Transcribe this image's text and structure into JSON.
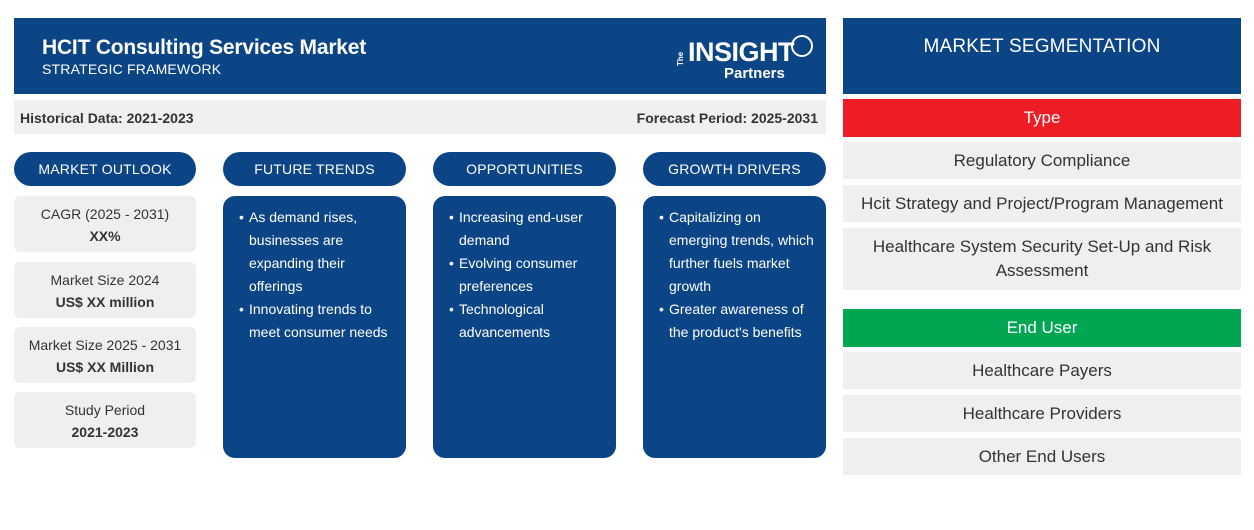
{
  "header": {
    "title": "HCIT Consulting Services Market",
    "subtitle": "STRATEGIC FRAMEWORK",
    "logo": {
      "the": "The",
      "insight": "INSIGHT",
      "partners": "Partners"
    }
  },
  "infobar": {
    "historical": "Historical Data: 2021-2023",
    "forecast": "Forecast Period: 2025-2031"
  },
  "sections": {
    "outlook": "MARKET OUTLOOK",
    "trends": "FUTURE TRENDS",
    "opportunities": "OPPORTUNITIES",
    "drivers": "GROWTH DRIVERS"
  },
  "outlook": [
    {
      "label": "CAGR (2025 - 2031)",
      "value": "XX%"
    },
    {
      "label": "Market Size 2024",
      "value": "US$ XX million"
    },
    {
      "label": "Market Size 2025 - 2031",
      "value": "US$ XX Million"
    },
    {
      "label": "Study Period",
      "value": "2021-2023"
    }
  ],
  "trends": [
    "As demand rises, businesses are expanding their offerings",
    "Innovating trends to meet consumer needs"
  ],
  "opportunities": [
    "Increasing end-user demand",
    "Evolving consumer preferences",
    "Technological advancements"
  ],
  "drivers": [
    "Capitalizing on emerging trends, which further fuels market growth",
    "Greater awareness of the product's benefits"
  ],
  "segmentation": {
    "title": "MARKET SEGMENTATION",
    "type_label": "Type",
    "type_items": [
      "Regulatory Compliance",
      "Hcit Strategy and Project/Program Management",
      "Healthcare System Security Set-Up and Risk Assessment"
    ],
    "enduser_label": "End User",
    "enduser_items": [
      "Healthcare Payers",
      "Healthcare Providers",
      "Other End Users"
    ]
  },
  "colors": {
    "navy": "#0b4586",
    "type_red": "#ee1c25",
    "enduser_green": "#00a651",
    "panel_gray": "#efefef"
  }
}
